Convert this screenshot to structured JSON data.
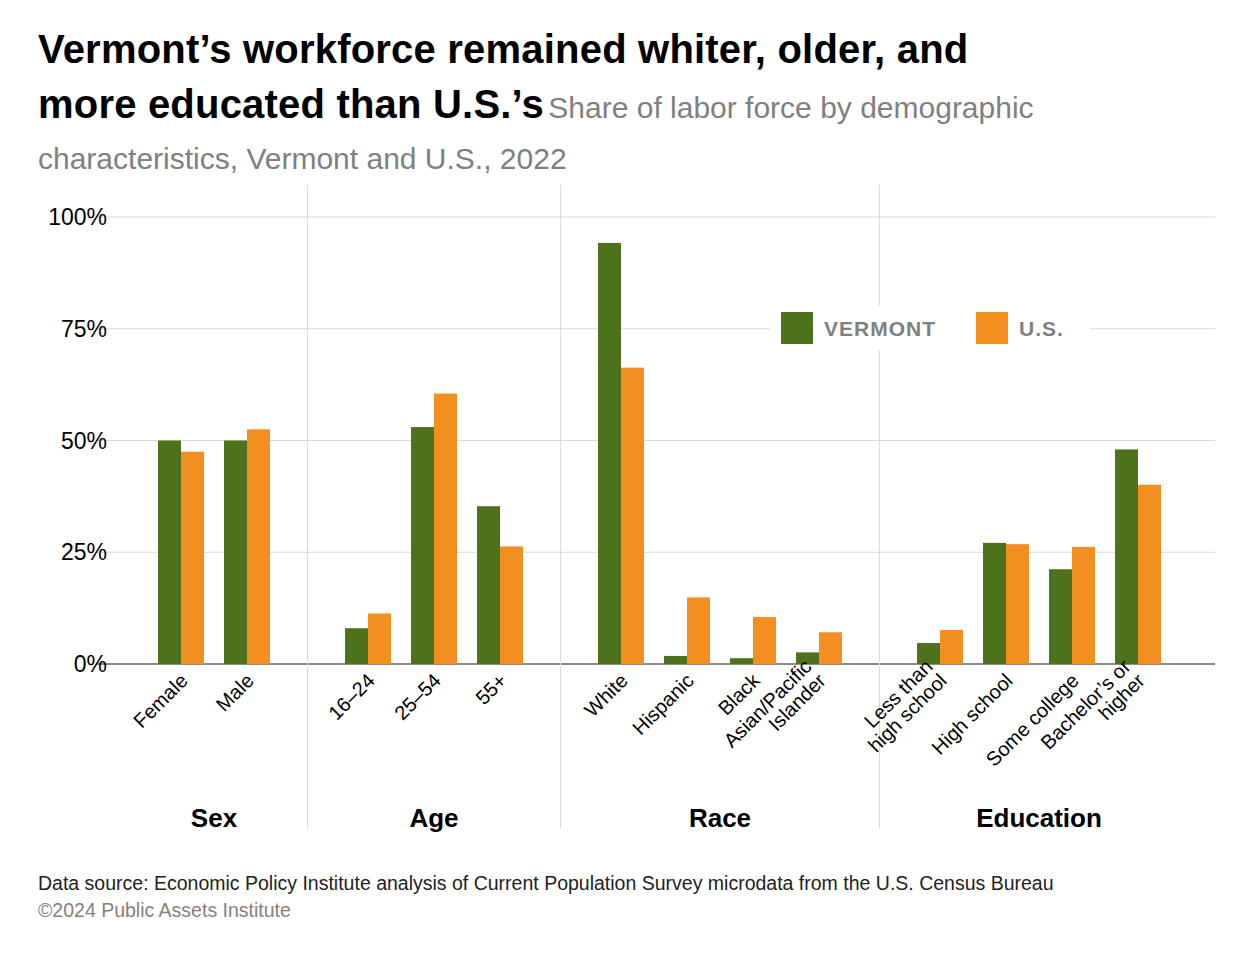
{
  "chart_data": {
    "type": "bar",
    "title": "Vermont’s workforce remained whiter, older, and more educated than U.S.’s",
    "subtitle": "Share of labor force by demographic characteristics, Vermont and U.S., 2022",
    "categories": [
      "Female",
      "Male",
      "16–24",
      "25–54",
      "55+",
      "White",
      "Hispanic",
      "Black",
      "Asian/Pacific Islander",
      "Less than high school",
      "High school",
      "Some college",
      "Bachelor’s or higher"
    ],
    "groups": [
      "Sex",
      "Sex",
      "Age",
      "Age",
      "Age",
      "Race",
      "Race",
      "Race",
      "Race",
      "Education",
      "Education",
      "Education",
      "Education"
    ],
    "series": [
      {
        "name": "VERMONT",
        "color": "#4e711b",
        "values": [
          50,
          50,
          8,
          53,
          35.3,
          94.2,
          1.8,
          1.3,
          2.6,
          4.7,
          27.1,
          21.2,
          48
        ]
      },
      {
        "name": "U.S.",
        "color": "#f28f20",
        "values": [
          47.5,
          52.5,
          11.3,
          60.5,
          26.3,
          66.3,
          14.9,
          10.5,
          7.1,
          7.6,
          26.8,
          26.2,
          40.1
        ]
      }
    ],
    "ylim": [
      0,
      100
    ],
    "yticks": [
      {
        "value": 0,
        "label": "0%"
      },
      {
        "value": 25,
        "label": "25%"
      },
      {
        "value": 50,
        "label": "50%"
      },
      {
        "value": 75,
        "label": "75%"
      },
      {
        "value": 100,
        "label": "100%"
      }
    ],
    "grid": true,
    "legend": "upper right",
    "source": "Data source: Economic Policy Institute analysis of Current Population Survey microdata from the U.S. Census Bureau",
    "copyright": "©2024 Public Assets Institute"
  }
}
